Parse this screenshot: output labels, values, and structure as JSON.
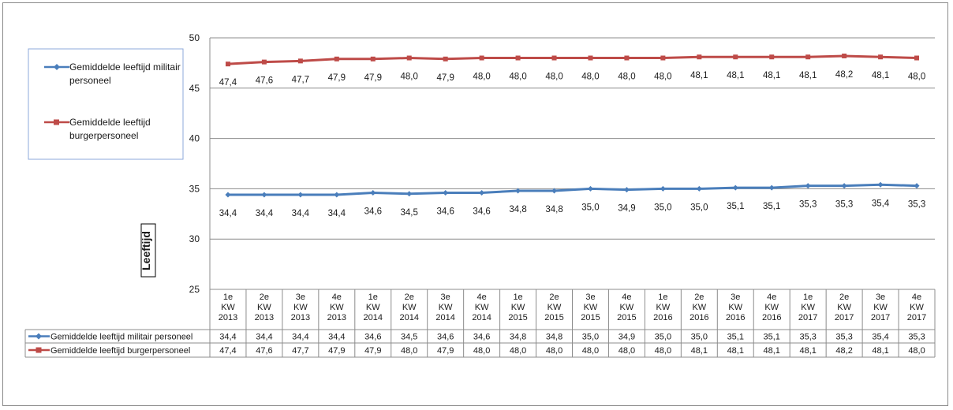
{
  "chart_data": {
    "type": "line",
    "ylabel": "Leeftijd",
    "ylim": [
      25,
      50
    ],
    "yticks": [
      25,
      30,
      35,
      40,
      45,
      50
    ],
    "grid": true,
    "legend_placement": "left",
    "categories": [
      [
        "1e",
        "KW",
        "2013"
      ],
      [
        "2e",
        "KW",
        "2013"
      ],
      [
        "3e",
        "KW",
        "2013"
      ],
      [
        "4e",
        "KW",
        "2013"
      ],
      [
        "1e",
        "KW",
        "2014"
      ],
      [
        "2e",
        "KW",
        "2014"
      ],
      [
        "3e",
        "KW",
        "2014"
      ],
      [
        "4e",
        "KW",
        "2014"
      ],
      [
        "1e",
        "KW",
        "2015"
      ],
      [
        "2e",
        "KW",
        "2015"
      ],
      [
        "3e",
        "KW",
        "2015"
      ],
      [
        "4e",
        "KW",
        "2015"
      ],
      [
        "1e",
        "KW",
        "2016"
      ],
      [
        "2e",
        "KW",
        "2016"
      ],
      [
        "3e",
        "KW",
        "2016"
      ],
      [
        "4e",
        "KW",
        "2016"
      ],
      [
        "1e",
        "KW",
        "2017"
      ],
      [
        "2e",
        "KW",
        "2017"
      ],
      [
        "3e",
        "KW",
        "2017"
      ],
      [
        "4e",
        "KW",
        "2017"
      ]
    ],
    "series": [
      {
        "name": "Gemiddelde leeftijd militair personeel",
        "legend_lines": [
          "Gemiddelde leeftijd militair",
          "personeel"
        ],
        "color": "#4a7ebb",
        "marker": "diamond",
        "values": [
          34.4,
          34.4,
          34.4,
          34.4,
          34.6,
          34.5,
          34.6,
          34.6,
          34.8,
          34.8,
          35.0,
          34.9,
          35.0,
          35.0,
          35.1,
          35.1,
          35.3,
          35.3,
          35.4,
          35.3
        ],
        "labels": [
          "34,4",
          "34,4",
          "34,4",
          "34,4",
          "34,6",
          "34,5",
          "34,6",
          "34,6",
          "34,8",
          "34,8",
          "35,0",
          "34,9",
          "35,0",
          "35,0",
          "35,1",
          "35,1",
          "35,3",
          "35,3",
          "35,4",
          "35,3"
        ]
      },
      {
        "name": "Gemiddelde leeftijd burgerpersoneel",
        "legend_lines": [
          "Gemiddelde leeftijd",
          "burgerpersoneel"
        ],
        "color": "#be4b48",
        "marker": "square",
        "values": [
          47.4,
          47.6,
          47.7,
          47.9,
          47.9,
          48.0,
          47.9,
          48.0,
          48.0,
          48.0,
          48.0,
          48.0,
          48.0,
          48.1,
          48.1,
          48.1,
          48.1,
          48.2,
          48.1,
          48.0
        ],
        "labels": [
          "47,4",
          "47,6",
          "47,7",
          "47,9",
          "47,9",
          "48,0",
          "47,9",
          "48,0",
          "48,0",
          "48,0",
          "48,0",
          "48,0",
          "48,0",
          "48,1",
          "48,1",
          "48,1",
          "48,1",
          "48,2",
          "48,1",
          "48,0"
        ]
      }
    ]
  }
}
